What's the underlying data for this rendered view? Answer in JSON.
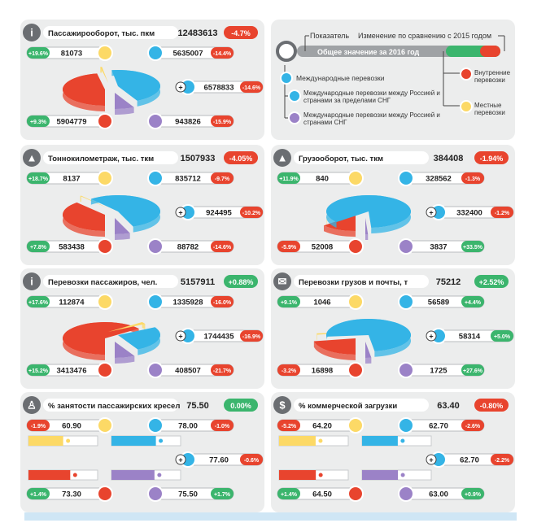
{
  "colors": {
    "red": "#e8442e",
    "blue": "#34b4e6",
    "purple": "#9b82c7",
    "yellow": "#fcd966",
    "green": "#3bb56d",
    "gray": "#6b6e72",
    "bg": "#eceded"
  },
  "legend": {
    "indicator": "Показатель",
    "change": "Изменение по сравнению с 2015 годом",
    "total": "Общее значение за 2016 год",
    "international": "Международные перевозки",
    "cis_outside": "Международные перевозки между Россией и странами за пределами СНГ",
    "cis_inside": "Международные перевозки между Россией и странами СНГ",
    "domestic": "Внутренние перевозки",
    "local": "Местные перевозки"
  },
  "chart_data": [
    {
      "type": "pie",
      "title": "Пассажирооборот, тыс. пкм",
      "icon": "person-icon",
      "total": "12483613",
      "change": "-4.7%",
      "local": {
        "value": "81073",
        "change": "+19.6%"
      },
      "domestic": {
        "value": "5904779",
        "change": "+9.3%"
      },
      "international": {
        "value": "6578833",
        "change": "-14.6%"
      },
      "outside_cis": {
        "value": "5635007",
        "change": "-14.4%"
      },
      "inside_cis": {
        "value": "943826",
        "change": "-15.9%"
      },
      "shares": {
        "domestic": 5904779,
        "local": 81073,
        "outside_cis": 5635007,
        "inside_cis": 943826
      }
    },
    {
      "type": "pie",
      "title": "Грузооборот, тыс. ткм",
      "icon": "weight-icon",
      "total": "384408",
      "change": "-1.94%",
      "local": {
        "value": "840",
        "change": "+11.9%"
      },
      "domestic": {
        "value": "52008",
        "change": "-5.9%"
      },
      "international": {
        "value": "332400",
        "change": "-1.2%"
      },
      "outside_cis": {
        "value": "328562",
        "change": "-1.3%"
      },
      "inside_cis": {
        "value": "3837",
        "change": "+33.5%"
      },
      "shares": {
        "domestic": 52008,
        "local": 840,
        "outside_cis": 328562,
        "inside_cis": 3837
      }
    },
    {
      "type": "pie",
      "title": "Тоннокилометраж, тыс. ткм",
      "icon": "weight-icon",
      "total": "1507933",
      "change": "-4.05%",
      "local": {
        "value": "8137",
        "change": "+18.7%"
      },
      "domestic": {
        "value": "583438",
        "change": "+7.8%"
      },
      "international": {
        "value": "924495",
        "change": "-10.2%"
      },
      "outside_cis": {
        "value": "835712",
        "change": "-9.7%"
      },
      "inside_cis": {
        "value": "88782",
        "change": "-14.6%"
      },
      "shares": {
        "domestic": 583438,
        "local": 8137,
        "outside_cis": 835712,
        "inside_cis": 88782
      }
    },
    {
      "type": "pie",
      "title": "Перевозки пассажиров, чел.",
      "icon": "person-icon",
      "total": "5157911",
      "change": "+0.88%",
      "local": {
        "value": "112874",
        "change": "+17.6%"
      },
      "domestic": {
        "value": "3413476",
        "change": "+15.2%"
      },
      "international": {
        "value": "1744435",
        "change": "-16.9%"
      },
      "outside_cis": {
        "value": "1335928",
        "change": "-16.0%"
      },
      "inside_cis": {
        "value": "408507",
        "change": "-21.7%"
      },
      "shares": {
        "domestic": 3413476,
        "local": 112874,
        "outside_cis": 1335928,
        "inside_cis": 408507
      }
    },
    {
      "type": "pie",
      "title": "Перевозки грузов и почты, т",
      "icon": "mail-icon",
      "total": "75212",
      "change": "+2.52%",
      "local": {
        "value": "1046",
        "change": "+9.1%"
      },
      "domestic": {
        "value": "16898",
        "change": "-3.2%"
      },
      "international": {
        "value": "58314",
        "change": "+5.0%"
      },
      "outside_cis": {
        "value": "56589",
        "change": "+4.4%"
      },
      "inside_cis": {
        "value": "1725",
        "change": "+27.6%"
      },
      "shares": {
        "domestic": 16898,
        "local": 1046,
        "outside_cis": 56589,
        "inside_cis": 1725
      }
    },
    {
      "type": "bar",
      "title": "% занятости пассажирских кресел",
      "icon": "seat-icon",
      "total": "75.50",
      "change": "0.00%",
      "local": {
        "value": "60.90",
        "change": "-1.9%"
      },
      "domestic": {
        "value": "73.30",
        "change": "+1.4%"
      },
      "international": {
        "value": "77.60",
        "change": "-0.6%"
      },
      "outside_cis": {
        "value": "78.00",
        "change": "-1.0%"
      },
      "inside_cis": {
        "value": "75.50",
        "change": "+1.7%"
      },
      "bars": {
        "local": 60.9,
        "domestic": 73.3,
        "outside_cis": 78.0,
        "inside_cis": 75.5
      },
      "xlim": [
        0,
        100
      ]
    },
    {
      "type": "bar",
      "title": "% коммерческой загрузки",
      "icon": "dollar-icon",
      "total": "63.40",
      "change": "-0.80%",
      "local": {
        "value": "64.20",
        "change": "-5.2%"
      },
      "domestic": {
        "value": "64.50",
        "change": "+1.4%"
      },
      "international": {
        "value": "62.70",
        "change": "-2.2%"
      },
      "outside_cis": {
        "value": "62.70",
        "change": "-2.6%"
      },
      "inside_cis": {
        "value": "63.00",
        "change": "+0.9%"
      },
      "bars": {
        "local": 64.2,
        "domestic": 64.5,
        "outside_cis": 62.7,
        "inside_cis": 63.0
      },
      "xlim": [
        0,
        100
      ]
    }
  ]
}
